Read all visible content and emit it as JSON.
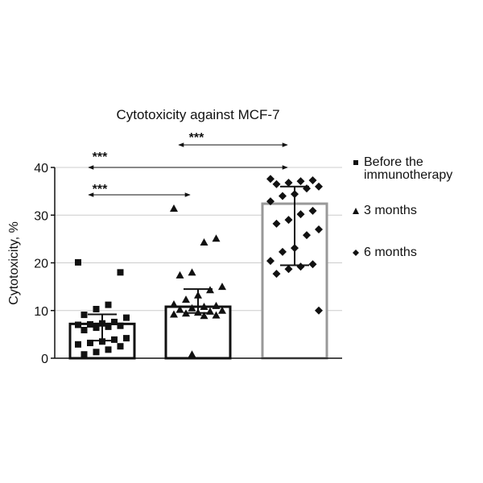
{
  "chart_data": {
    "type": "bar-scatter",
    "title": "Cytotoxicity against MCF-7",
    "ylabel": "Cytotoxicity, %",
    "ylim": [
      0,
      40
    ],
    "yticks": [
      0,
      10,
      20,
      30,
      40
    ],
    "grid": true,
    "annotations": [
      "***",
      "***",
      "***"
    ],
    "series": [
      {
        "name": "Before the immunotherapy",
        "marker": "square",
        "color": "#111111",
        "edge_color": "#111111",
        "value": 7.2,
        "error_low": 3.7,
        "error_high": 9.2,
        "points": [
          20.1,
          18,
          11.2,
          10.3,
          9.1,
          8.5,
          7.6,
          7.3,
          7.1,
          7,
          6.8,
          6.6,
          6.4,
          5.9,
          4.2,
          3.9,
          3.5,
          3.2,
          2.9,
          2.5,
          1.8,
          1.3,
          0.8
        ]
      },
      {
        "name": "3 months",
        "marker": "triangle",
        "color": "#111111",
        "edge_color": "#111111",
        "value": 10.8,
        "error_low": 9.5,
        "error_high": 14.5,
        "points": [
          31.4,
          25.1,
          24.3,
          18,
          17.4,
          15,
          14.3,
          13.2,
          12.3,
          11.3,
          11,
          10.8,
          10.5,
          10.2,
          10,
          9.8,
          9.6,
          9.4,
          9.2,
          9,
          8.9,
          0.8
        ]
      },
      {
        "name": "6 months",
        "marker": "diamond",
        "color": "#111111",
        "edge_color": "#999999",
        "value": 32.4,
        "error_low": 19.5,
        "error_high": 36,
        "points": [
          37.6,
          37.3,
          37.1,
          36.8,
          36.5,
          36,
          35.6,
          34.4,
          34,
          32.9,
          30.9,
          30.2,
          29,
          28.2,
          27,
          25.8,
          23.1,
          22.3,
          20.4,
          19.7,
          19.2,
          18.7,
          17.7,
          10
        ]
      }
    ]
  }
}
